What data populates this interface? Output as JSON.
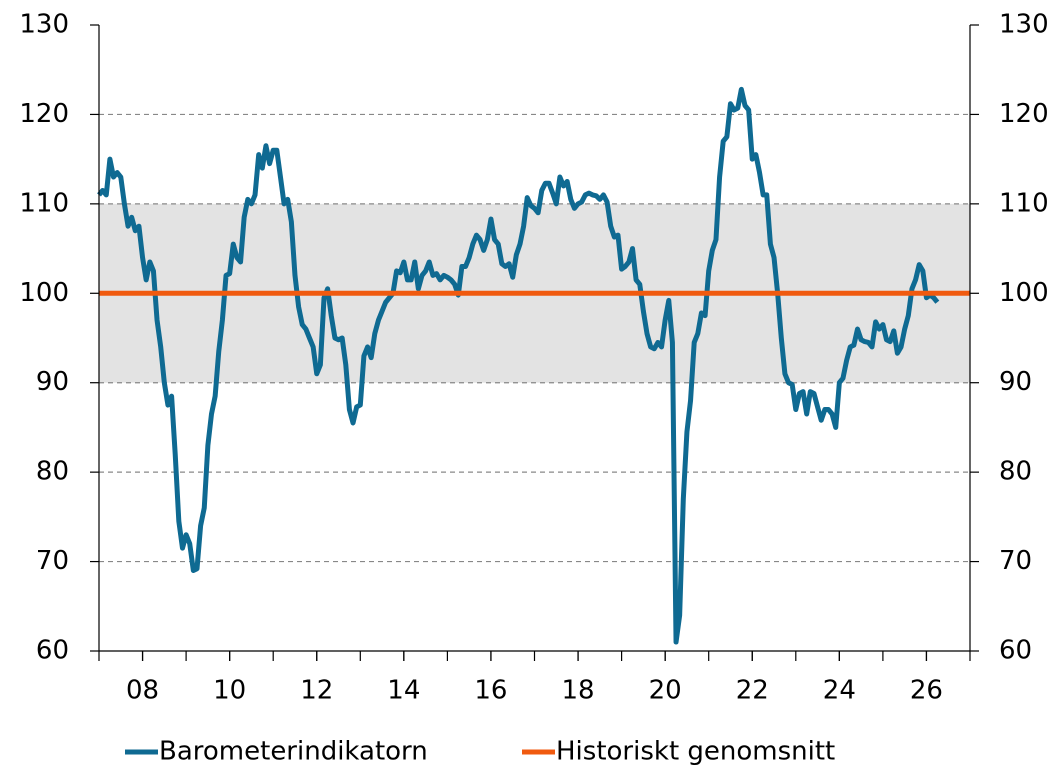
{
  "chart_data": {
    "type": "line",
    "series": [
      {
        "name": "Barometerindikatorn",
        "color": "#0f6a92",
        "x": [
          2007,
          2007.083,
          2007.167,
          2007.25,
          2007.333,
          2007.417,
          2007.5,
          2007.583,
          2007.667,
          2007.75,
          2007.833,
          2007.917,
          2008,
          2008.083,
          2008.167,
          2008.25,
          2008.333,
          2008.417,
          2008.5,
          2008.583,
          2008.667,
          2008.75,
          2008.833,
          2008.917,
          2009,
          2009.083,
          2009.167,
          2009.25,
          2009.333,
          2009.417,
          2009.5,
          2009.583,
          2009.667,
          2009.75,
          2009.833,
          2009.917,
          2010,
          2010.083,
          2010.167,
          2010.25,
          2010.333,
          2010.417,
          2010.5,
          2010.583,
          2010.667,
          2010.75,
          2010.833,
          2010.917,
          2011,
          2011.083,
          2011.167,
          2011.25,
          2011.333,
          2011.417,
          2011.5,
          2011.583,
          2011.667,
          2011.75,
          2011.833,
          2011.917,
          2012,
          2012.083,
          2012.167,
          2012.25,
          2012.333,
          2012.417,
          2012.5,
          2012.583,
          2012.667,
          2012.75,
          2012.833,
          2012.917,
          2013,
          2013.083,
          2013.167,
          2013.25,
          2013.333,
          2013.417,
          2013.5,
          2013.583,
          2013.667,
          2013.75,
          2013.833,
          2013.917,
          2014,
          2014.083,
          2014.167,
          2014.25,
          2014.333,
          2014.417,
          2014.5,
          2014.583,
          2014.667,
          2014.75,
          2014.833,
          2014.917,
          2015,
          2015.083,
          2015.167,
          2015.25,
          2015.333,
          2015.417,
          2015.5,
          2015.583,
          2015.667,
          2015.75,
          2015.833,
          2015.917,
          2016,
          2016.083,
          2016.167,
          2016.25,
          2016.333,
          2016.417,
          2016.5,
          2016.583,
          2016.667,
          2016.75,
          2016.833,
          2016.917,
          2017,
          2017.083,
          2017.167,
          2017.25,
          2017.333,
          2017.417,
          2017.5,
          2017.583,
          2017.667,
          2017.75,
          2017.833,
          2017.917,
          2018,
          2018.083,
          2018.167,
          2018.25,
          2018.333,
          2018.417,
          2018.5,
          2018.583,
          2018.667,
          2018.75,
          2018.833,
          2018.917,
          2019,
          2019.083,
          2019.167,
          2019.25,
          2019.333,
          2019.417,
          2019.5,
          2019.583,
          2019.667,
          2019.75,
          2019.833,
          2019.917,
          2020,
          2020.083,
          2020.167,
          2020.25,
          2020.333,
          2020.417,
          2020.5,
          2020.583,
          2020.667,
          2020.75,
          2020.833,
          2020.917,
          2021,
          2021.083,
          2021.167,
          2021.25,
          2021.333,
          2021.417,
          2021.5,
          2021.583,
          2021.667,
          2021.75,
          2021.833,
          2021.917,
          2022,
          2022.083,
          2022.167,
          2022.25,
          2022.333,
          2022.417,
          2022.5,
          2022.583,
          2022.667,
          2022.75,
          2022.833,
          2022.917,
          2023,
          2023.083,
          2023.167,
          2023.25,
          2023.333,
          2023.417,
          2023.5,
          2023.583,
          2023.667,
          2023.75,
          2023.833,
          2023.917,
          2024,
          2024.083,
          2024.167,
          2024.25,
          2024.333,
          2024.417,
          2024.5,
          2024.583,
          2024.667,
          2024.75,
          2024.833,
          2024.917,
          2025,
          2025.083,
          2025.167,
          2025.25,
          2025.333,
          2025.417,
          2025.5,
          2025.583,
          2025.667,
          2025.75,
          2025.833,
          2025.917,
          2026,
          2026.083,
          2026.167,
          2026.25
        ],
        "values": [
          111,
          111.5,
          111,
          115,
          113,
          113.5,
          113,
          110,
          107.5,
          108.5,
          107,
          107.5,
          104,
          101.5,
          103.5,
          102.5,
          97,
          94,
          90,
          87.5,
          88.5,
          82,
          74.5,
          71.5,
          73,
          72,
          69,
          69.2,
          74,
          76,
          83,
          86.5,
          88.5,
          93.5,
          97,
          102,
          102.2,
          105.5,
          104,
          103.5,
          108.5,
          110.5,
          110,
          111,
          115.5,
          114,
          116.5,
          114.5,
          116,
          116,
          113,
          110,
          110.5,
          108,
          102,
          98.5,
          96.5,
          96,
          95,
          94,
          91,
          92,
          99.5,
          100.5,
          97.5,
          95,
          94.8,
          95,
          92,
          87,
          85.5,
          87.3,
          87.5,
          93,
          94,
          92.8,
          95.5,
          97,
          98,
          99,
          99.5,
          100,
          102.5,
          102.3,
          103.5,
          101.5,
          101.5,
          103.5,
          100.5,
          102,
          102.5,
          103.5,
          102,
          102.2,
          101.5,
          102,
          101.8,
          101.5,
          101,
          99.8,
          103,
          103,
          104,
          105.5,
          106.5,
          106,
          104.8,
          106,
          108.3,
          106,
          105.5,
          103.3,
          103,
          103.3,
          101.8,
          104.3,
          105.5,
          107.5,
          110.7,
          109.8,
          109.5,
          109,
          111.5,
          112.3,
          112.3,
          111.2,
          110,
          113,
          112,
          112.5,
          110.5,
          109.5,
          110,
          110.2,
          111,
          111.2,
          111,
          110.9,
          110.5,
          111,
          110.2,
          107.5,
          106.3,
          106.5,
          102.7,
          103,
          103.5,
          105,
          101.5,
          101,
          98,
          95.5,
          94,
          93.8,
          94.5,
          94,
          97,
          99.2,
          94.5,
          61,
          64,
          77,
          84.5,
          88,
          94.5,
          95.5,
          97.8,
          97.5,
          102.5,
          104.8,
          106,
          113,
          117,
          117.5,
          121.2,
          120.5,
          120.7,
          122.8,
          121,
          120.5,
          115,
          115.5,
          113.5,
          111,
          111,
          105.5,
          104,
          100,
          95,
          91,
          90,
          89.8,
          87,
          88.8,
          89,
          86.5,
          89,
          88.8,
          87.3,
          85.8,
          87,
          87,
          86.5,
          85,
          90,
          90.5,
          92.5,
          94,
          94.2,
          96,
          94.8,
          94.6,
          94.5,
          94,
          96.8,
          96,
          96.5,
          94.8,
          94.6,
          95.8,
          93.3,
          94,
          96,
          97.5,
          100.5,
          101.5,
          103.2,
          102.5,
          99.5,
          99.8,
          99.5,
          99
        ]
      },
      {
        "name": "Historiskt genomsnitt",
        "color": "#f05a0f",
        "x": [
          2007,
          2027
        ],
        "values": [
          100,
          100
        ]
      }
    ],
    "band": [
      90,
      110
    ],
    "band_color": "#e3e3e3",
    "xlim": [
      2007,
      2027
    ],
    "xticks": [
      {
        "value": 2008,
        "label": "08"
      },
      {
        "value": 2010,
        "label": "10"
      },
      {
        "value": 2012,
        "label": "12"
      },
      {
        "value": 2014,
        "label": "14"
      },
      {
        "value": 2016,
        "label": "16"
      },
      {
        "value": 2018,
        "label": "18"
      },
      {
        "value": 2020,
        "label": "20"
      },
      {
        "value": 2022,
        "label": "22"
      },
      {
        "value": 2024,
        "label": "24"
      },
      {
        "value": 2026,
        "label": "26"
      }
    ],
    "ylim": [
      60,
      130
    ],
    "yticks": [
      60,
      70,
      80,
      90,
      100,
      110,
      120,
      130
    ],
    "y2lim": [
      60,
      130
    ],
    "y2ticks": [
      60,
      70,
      80,
      90,
      100,
      110,
      120,
      130
    ],
    "grid": true,
    "legend": "bottom"
  }
}
